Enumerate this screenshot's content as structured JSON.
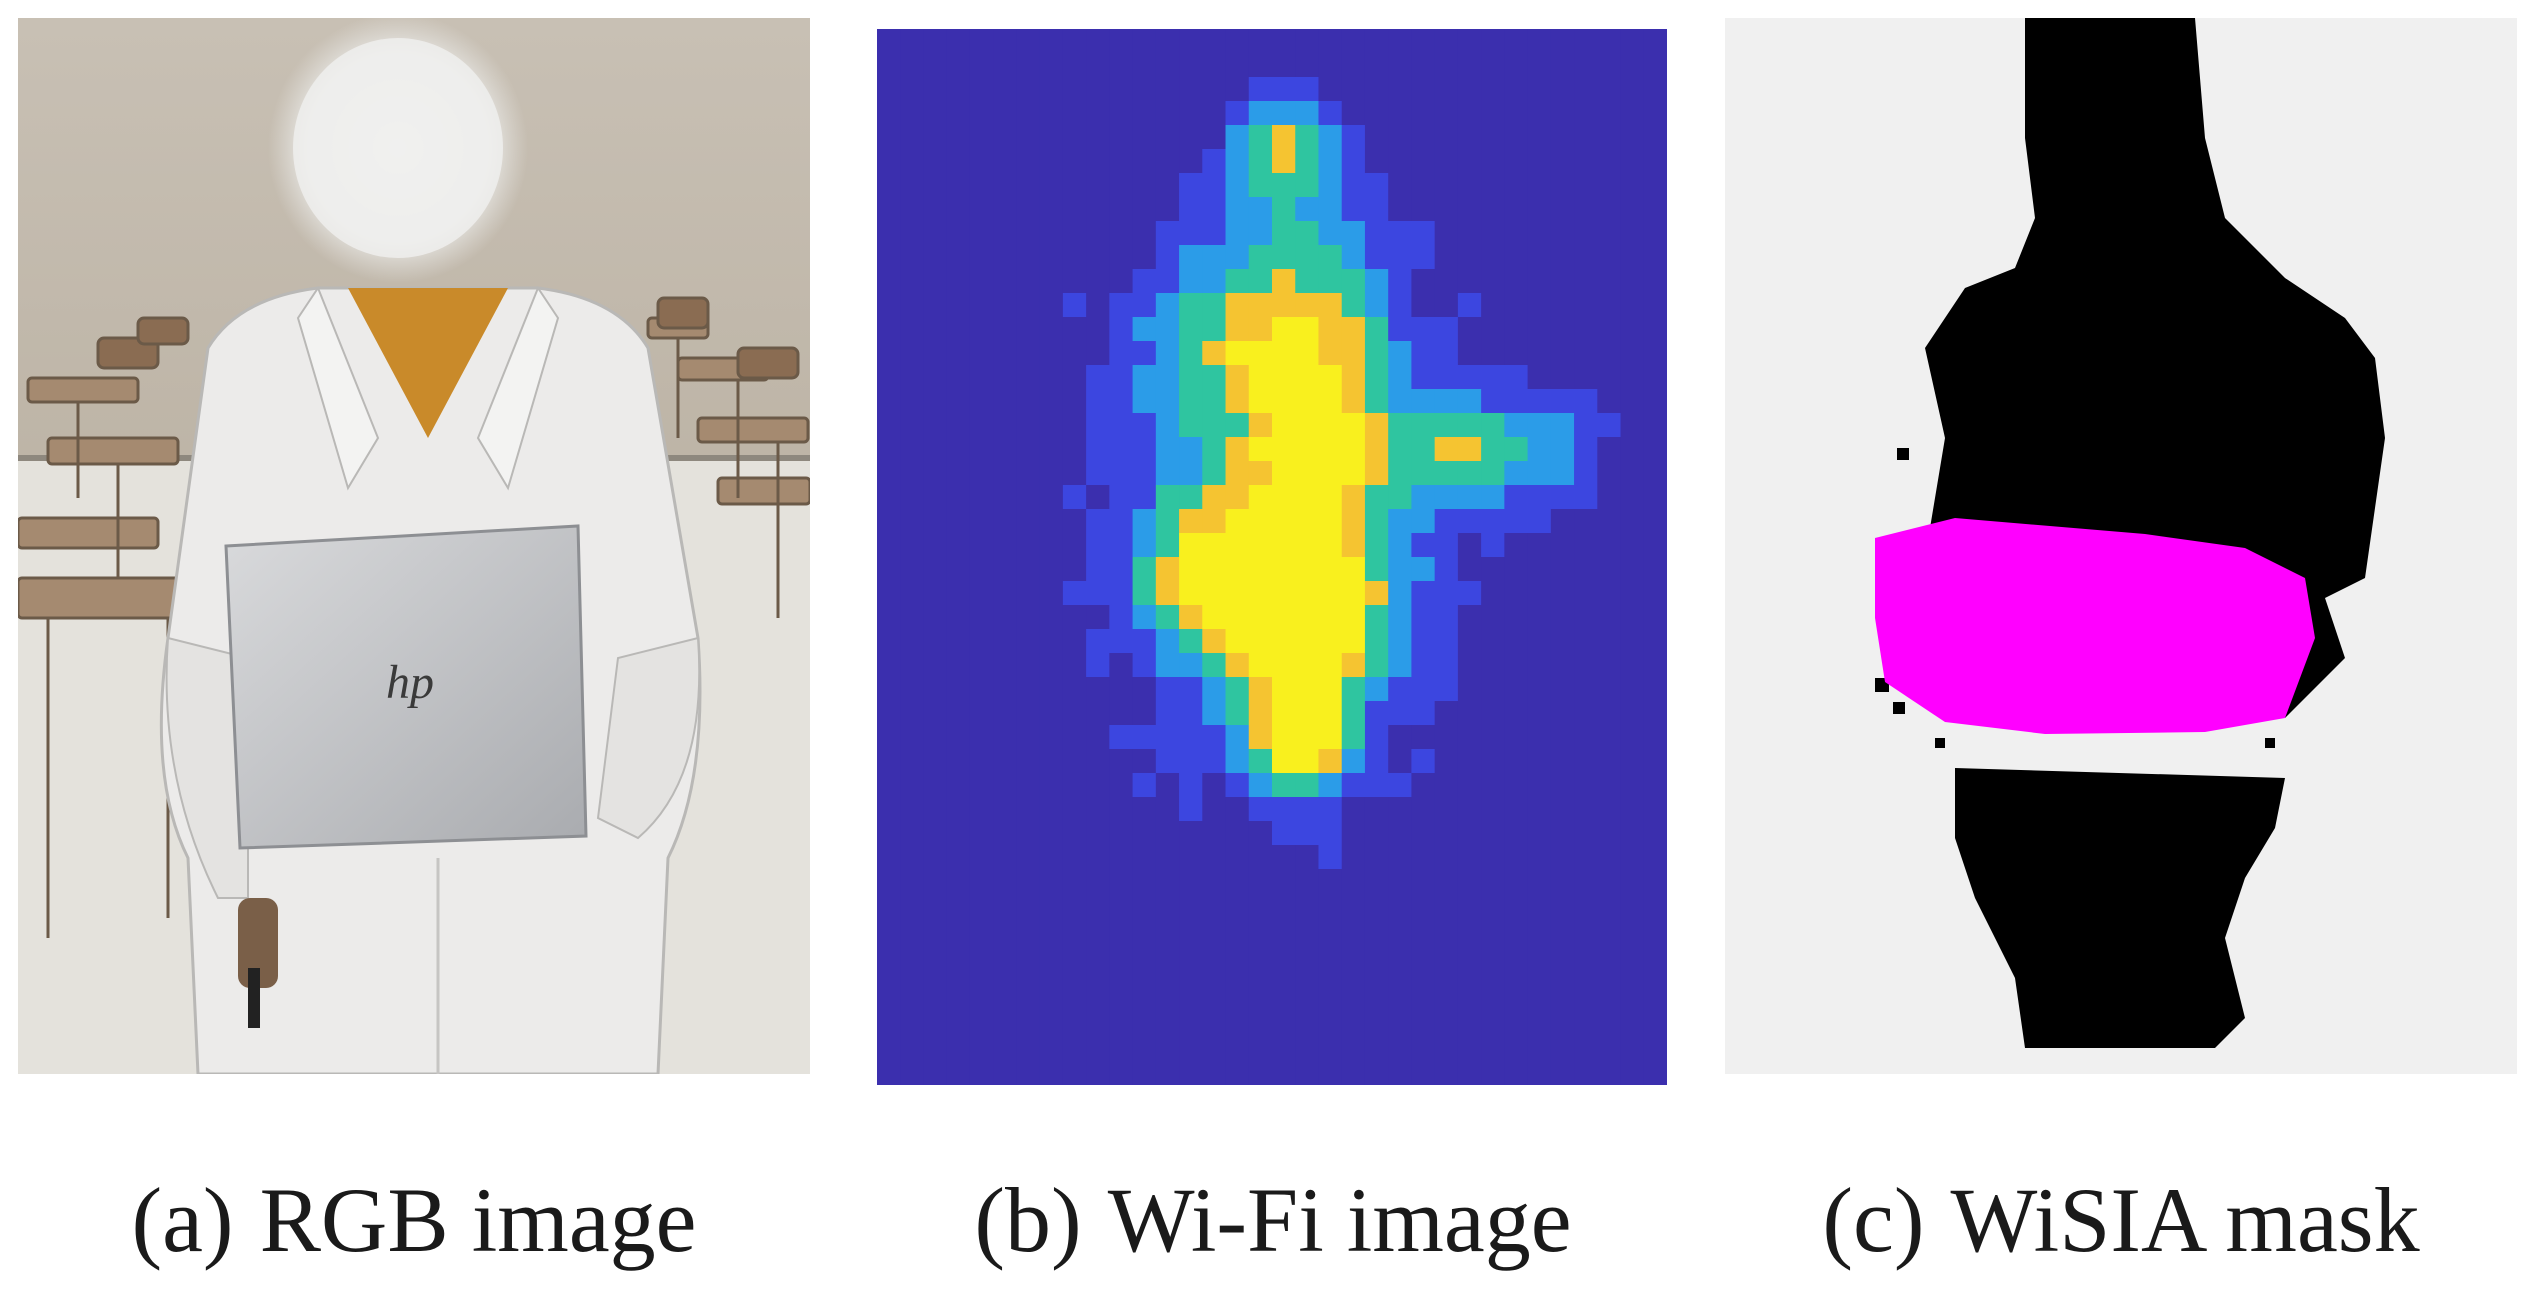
{
  "panels": [
    {
      "label": "(a)",
      "title": "RGB image"
    },
    {
      "label": "(b)",
      "title": "Wi-Fi image"
    },
    {
      "label": "(c)",
      "title": "WiSIA mask"
    }
  ],
  "photo": {
    "laptop_logo": "hp"
  },
  "colors": {
    "wifi_background": "#3b2fae",
    "wifi_low": "#3c46e0",
    "wifi_mid": "#2b9ce8",
    "wifi_high": "#2fc5a0",
    "wifi_peak": "#f5c431",
    "wifi_max": "#f9f01e",
    "mask_background": "#f0f0f0",
    "mask_person": "#000000",
    "mask_object": "#ff00ff"
  }
}
